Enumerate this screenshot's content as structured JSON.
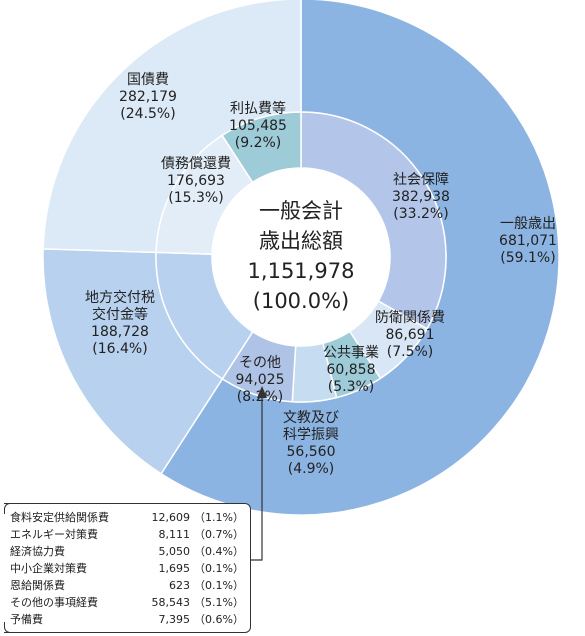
{
  "chart_data": {
    "type": "pie",
    "center": {
      "line1": "一般会計",
      "line2": "歳出総額",
      "line3": "1,151,978",
      "line4": "(100.0%)"
    },
    "total": 1151978,
    "outer": [
      {
        "name": "一般歳出",
        "value": 681071,
        "value_text": "681,071",
        "pct_text": "(59.1%)",
        "color": "#8cb4e2"
      },
      {
        "name": "地方交付税\n交付金等",
        "value": 188728,
        "value_text": "188,728",
        "pct_text": "(16.4%)",
        "color": "#b7d1ee"
      },
      {
        "name": "国債費",
        "value": 282179,
        "value_text": "282,179",
        "pct_text": "(24.5%)",
        "color": "#dce9f6"
      }
    ],
    "inner": [
      {
        "name": "社会保障",
        "value": 382938,
        "value_text": "382,938",
        "pct_text": "(33.2%)",
        "color": "#b3c6ea"
      },
      {
        "name": "防衛関係費",
        "value": 86691,
        "value_text": "86,691",
        "pct_text": "(7.5%)",
        "color": "#d8e6f6"
      },
      {
        "name": "公共事業",
        "value": 60858,
        "value_text": "60,858",
        "pct_text": "(5.3%)",
        "color": "#9ecbd8"
      },
      {
        "name": "文教及び\n科学振興",
        "value": 56560,
        "value_text": "56,560",
        "pct_text": "(4.9%)",
        "color": "#c6dcf1"
      },
      {
        "name": "その他",
        "value": 94025,
        "value_text": "94,025",
        "pct_text": "(8.2%)",
        "color": "#afc3e6"
      },
      {
        "name": "地方交付税交付金等",
        "value": 188728,
        "color": "#b7d1ee"
      },
      {
        "name": "債務償還費",
        "value": 176693,
        "value_text": "176,693",
        "pct_text": "(15.3%)",
        "color": "#e3edf8"
      },
      {
        "name": "利払費等",
        "value": 105485,
        "value_text": "105,485",
        "pct_text": "(9.2%)",
        "color": "#9ecbd8"
      }
    ],
    "other_breakdown": [
      {
        "name": "食料安定供給関係費",
        "value": "12,609",
        "pct": "（1.1%）"
      },
      {
        "name": "エネルギー対策費",
        "value": "8,111",
        "pct": "（0.7%）"
      },
      {
        "name": "経済協力費",
        "value": "5,050",
        "pct": "（0.4%）"
      },
      {
        "name": "中小企業対策費",
        "value": "1,695",
        "pct": "（0.1%）"
      },
      {
        "name": "恩給関係費",
        "value": "623",
        "pct": "（0.1%）"
      },
      {
        "name": "その他の事項経費",
        "value": "58,543",
        "pct": "（5.1%）"
      },
      {
        "name": "予備費",
        "value": "7,395",
        "pct": "（0.6%）"
      }
    ]
  }
}
